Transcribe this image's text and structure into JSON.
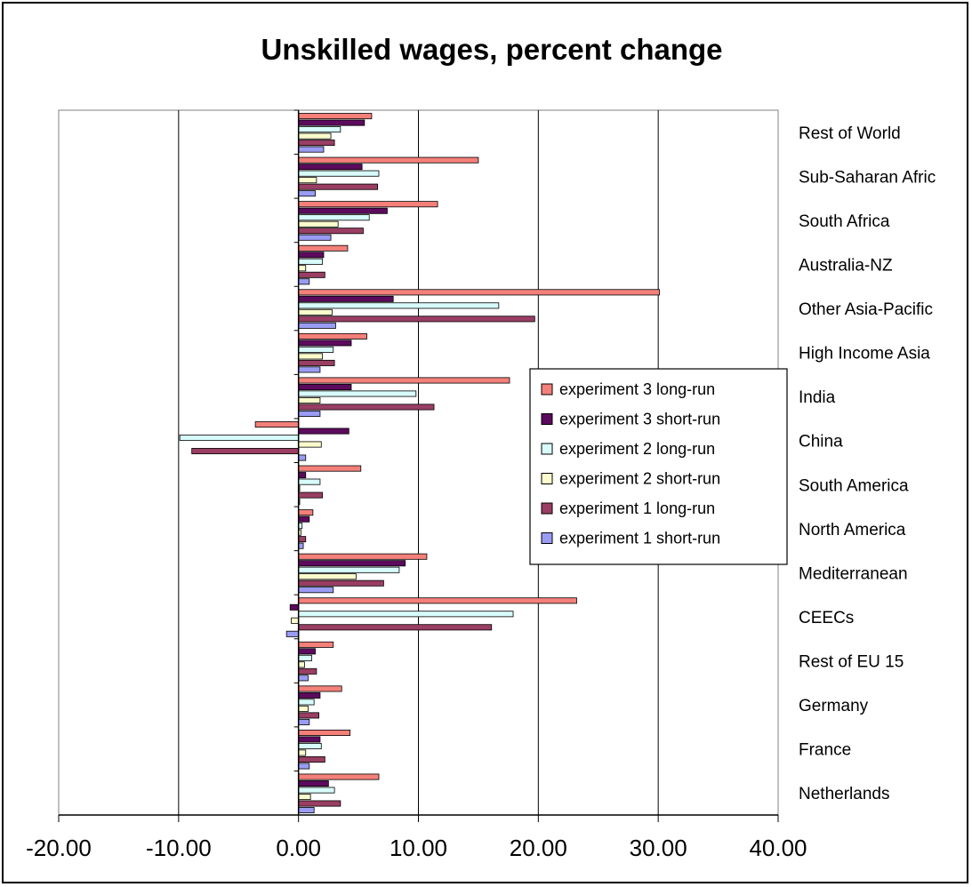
{
  "chart_data": {
    "type": "bar",
    "orientation": "horizontal",
    "title": "Unskilled wages, percent change",
    "xlabel": "",
    "ylabel": "",
    "xlim": [
      -20,
      40
    ],
    "x_ticks": [
      "-20.00",
      "-10.00",
      "0.00",
      "10.00",
      "20.00",
      "30.00",
      "40.00"
    ],
    "x_tick_values": [
      -20,
      -10,
      0,
      10,
      20,
      30,
      40
    ],
    "grid": "vertical gridlines",
    "legend_position": "right",
    "categories": [
      "Rest of World",
      "Sub-Saharan Afric",
      "South Africa",
      "Australia-NZ",
      "Other Asia-Pacific",
      "High Income Asia",
      "India",
      "China",
      "South America",
      "North America",
      "Mediterranean",
      "CEECs",
      "Rest of EU 15",
      "Germany",
      "France",
      "Netherlands"
    ],
    "series": [
      {
        "name": "experiment 3 long-run",
        "color": "#f4807a",
        "values": [
          6.1,
          15.0,
          11.6,
          4.1,
          30.1,
          5.7,
          17.6,
          -3.6,
          5.2,
          1.2,
          10.7,
          23.2,
          2.9,
          3.6,
          4.3,
          6.7
        ]
      },
      {
        "name": "experiment 3 short-run",
        "color": "#5c0a5e",
        "values": [
          5.5,
          5.3,
          7.4,
          2.1,
          7.9,
          4.4,
          4.4,
          4.2,
          0.6,
          0.9,
          8.9,
          -0.7,
          1.4,
          1.8,
          1.8,
          2.5
        ]
      },
      {
        "name": "experiment 2 long-run",
        "color": "#d8fbfb",
        "values": [
          3.5,
          6.7,
          5.9,
          2.0,
          16.7,
          2.9,
          9.8,
          -9.9,
          1.8,
          0.3,
          8.4,
          17.9,
          1.1,
          1.3,
          1.9,
          3.0
        ]
      },
      {
        "name": "experiment 2 short-run",
        "color": "#fbfbcc",
        "values": [
          2.7,
          1.5,
          3.3,
          0.6,
          2.8,
          2.0,
          1.8,
          1.9,
          0.1,
          0.2,
          4.8,
          -0.6,
          0.5,
          0.8,
          0.6,
          1.0
        ]
      },
      {
        "name": "experiment 1 long-run",
        "color": "#9a3e63",
        "values": [
          3.0,
          6.6,
          5.4,
          2.2,
          19.7,
          3.0,
          11.3,
          -8.9,
          2.0,
          0.6,
          7.1,
          16.1,
          1.5,
          1.7,
          2.2,
          3.5
        ]
      },
      {
        "name": "experiment 1 short-run",
        "color": "#9a9cf4",
        "values": [
          2.1,
          1.4,
          2.7,
          0.9,
          3.1,
          1.8,
          1.8,
          0.6,
          0.1,
          0.4,
          2.9,
          -1.0,
          0.8,
          0.9,
          0.9,
          1.3
        ]
      }
    ],
    "legend_order": [
      "experiment 3 long-run",
      "experiment 3 short-run",
      "experiment 2 long-run",
      "experiment 2 short-run",
      "experiment 1 long-run",
      "experiment 1 short-run"
    ]
  }
}
